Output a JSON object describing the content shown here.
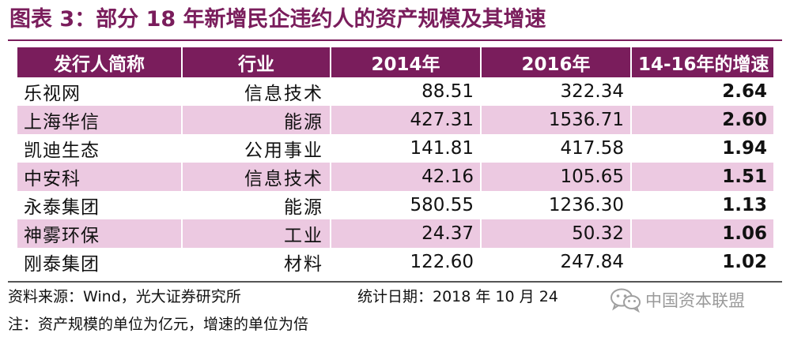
{
  "title": "图表 3：部分 18 年新增民企违约人的资产规模及其增速",
  "table": {
    "headers": [
      "发行人简称",
      "行业",
      "2014年",
      "2016年",
      "14-16年的增速"
    ],
    "rows": [
      {
        "name": "乐视网",
        "industry": "信息技术",
        "y2014": "88.51",
        "y2016": "322.34",
        "growth": "2.64"
      },
      {
        "name": "上海华信",
        "industry": "能源",
        "y2014": "427.31",
        "y2016": "1536.71",
        "growth": "2.60"
      },
      {
        "name": "凯迪生态",
        "industry": "公用事业",
        "y2014": "141.81",
        "y2016": "417.58",
        "growth": "1.94"
      },
      {
        "name": "中安科",
        "industry": "信息技术",
        "y2014": "42.16",
        "y2016": "105.65",
        "growth": "1.51"
      },
      {
        "name": "永泰集团",
        "industry": "能源",
        "y2014": "580.55",
        "y2016": "1236.30",
        "growth": "1.13"
      },
      {
        "name": "神雾环保",
        "industry": "工业",
        "y2014": "24.37",
        "y2016": "50.32",
        "growth": "1.06"
      },
      {
        "name": "刚泰集团",
        "industry": "材料",
        "y2014": "122.60",
        "y2016": "247.84",
        "growth": "1.02"
      }
    ]
  },
  "footer": {
    "source": "资料来源：Wind，光大证券研究所",
    "date": "统计日期：2018 年 10 月 24",
    "unit_note": "注：资产规模的单位为亿元，增速的单位为倍"
  },
  "watermark": {
    "icon": "wechat-icon",
    "text": "中国资本联盟"
  },
  "colors": {
    "accent": "#7a1d5c",
    "row_alt": "#ecc9e1"
  }
}
